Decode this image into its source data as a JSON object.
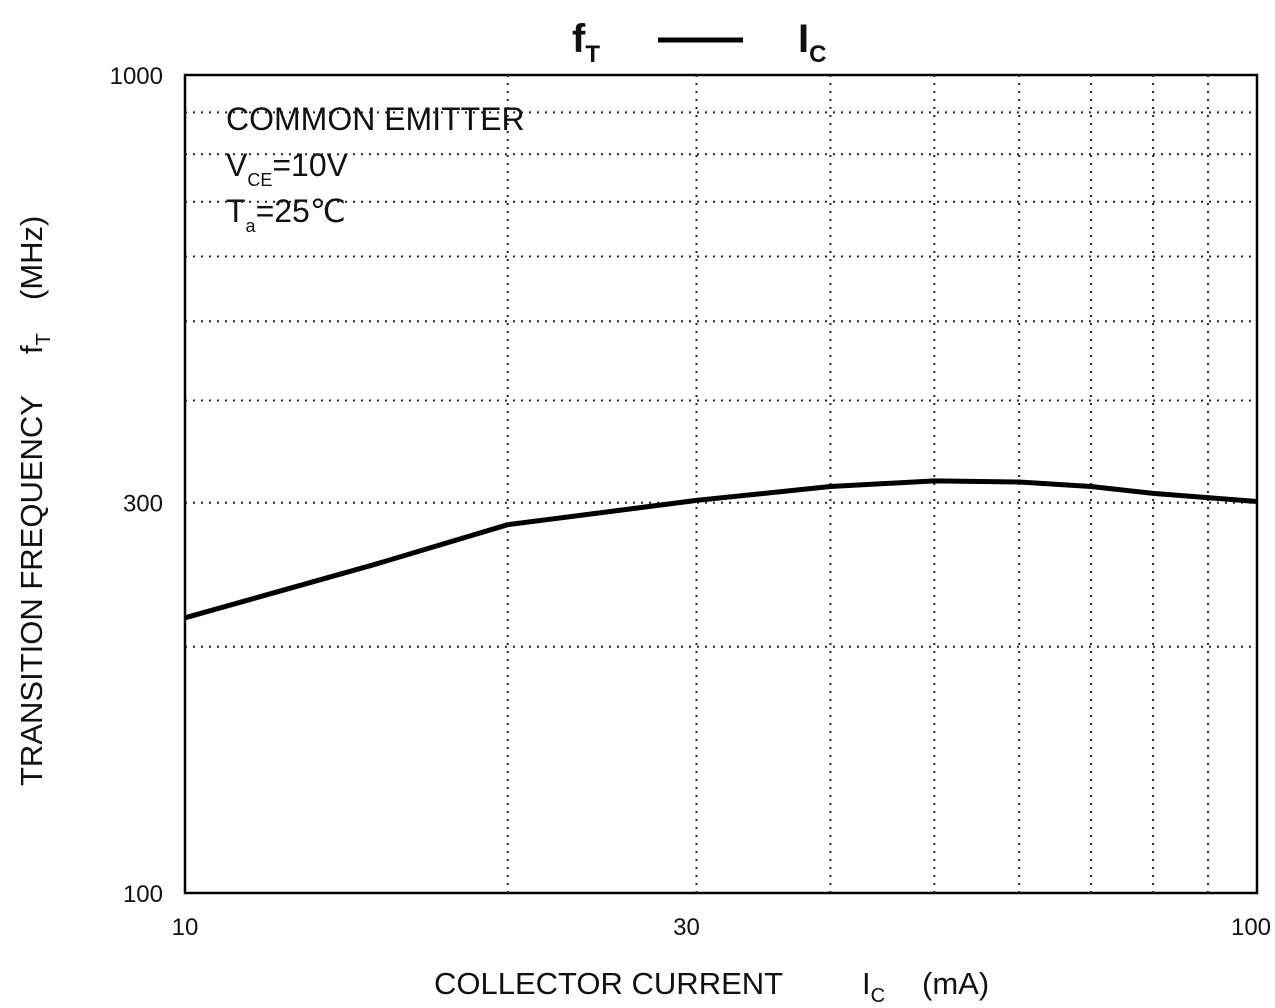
{
  "chart_data": {
    "type": "line",
    "title": {
      "y_symbol": "f",
      "y_sub": "T",
      "x_symbol": "I",
      "x_sub": "C"
    },
    "xlabel": {
      "text": "COLLECTOR CURRENT",
      "symbol": "I",
      "sub": "C",
      "unit": "(mA)"
    },
    "ylabel": {
      "text": "TRANSITION FREQUENCY",
      "symbol": "f",
      "sub": "T",
      "unit": "(MHz)"
    },
    "annotations": [
      {
        "main": "COMMON EMITTER"
      },
      {
        "main": "V",
        "sub": "CE",
        "rest": "=10V"
      },
      {
        "main": "T",
        "sub": "a",
        "rest": "=25℃"
      }
    ],
    "x": [
      10,
      15,
      20,
      30,
      40,
      50,
      60,
      70,
      80,
      100
    ],
    "series": [
      {
        "name": "f_T",
        "color": "#000000",
        "values": [
          217,
          252,
          282,
          302,
          314,
          319,
          318,
          314,
          308,
          301
        ]
      }
    ],
    "xscale": "log",
    "yscale": "log",
    "xlim": [
      10,
      100
    ],
    "ylim": [
      100,
      1000
    ],
    "xticks": [
      10,
      30,
      100
    ],
    "yticks": [
      100,
      300,
      1000
    ],
    "xgrid": [
      20,
      40,
      50,
      60,
      70,
      80,
      90
    ],
    "ygrid": [
      200,
      400,
      500,
      600,
      700,
      800,
      900
    ],
    "grid": true
  }
}
